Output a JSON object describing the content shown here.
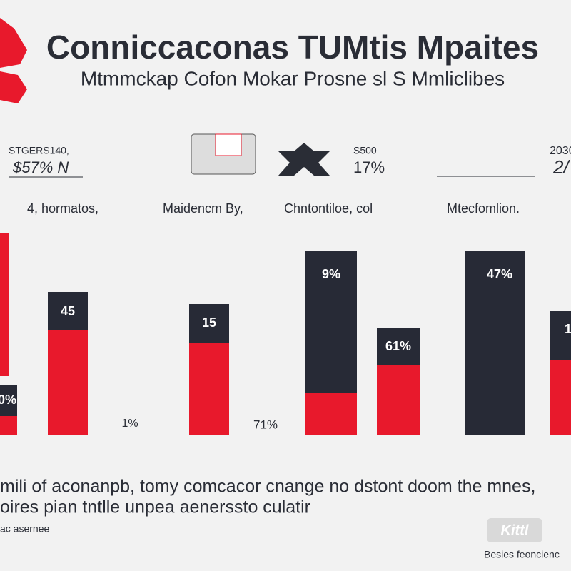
{
  "header": {
    "title": "Conniccaconas TUMtis Mpaites",
    "subtitle": "Mtmmckap Cofon Mokar Prosne sl S Mmliclibes"
  },
  "stats": [
    {
      "label": "STGERS140,",
      "value": "$57% N"
    },
    {
      "label": "S500",
      "value": "17%"
    },
    {
      "label": "2030",
      "value": "2/"
    }
  ],
  "sections": [
    "4, hormatos,",
    "Maidencm By,",
    "Chntontiloe, col",
    "Mtecfomlion."
  ],
  "bar_labels": [
    "0%",
    "45",
    "15",
    "9%",
    "61%",
    "47%",
    "1"
  ],
  "below_labels": [
    "1%",
    "71%"
  ],
  "footer": {
    "lines": [
      "mili of aconanpb, tomy comcacor cnange no dstont doom the mnes,",
      "oires pian tntlle unpea aenerssto culatir"
    ],
    "note": "ac asernee",
    "badge": "Kittl",
    "credit": "Besies feoncienc"
  }
}
